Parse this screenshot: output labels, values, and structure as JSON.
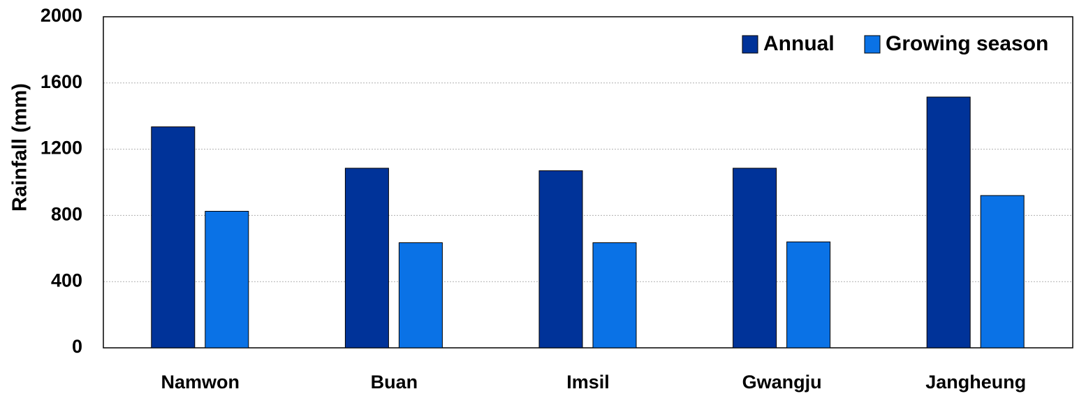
{
  "chart_data": {
    "type": "bar",
    "y_label": "Rainfall (mm)",
    "categories": [
      "Namwon",
      "Buan",
      "Imsil",
      "Gwangju",
      "Jangheung"
    ],
    "series": [
      {
        "name": "Annual",
        "color": "#003399",
        "values": [
          1335,
          1085,
          1070,
          1085,
          1515
        ]
      },
      {
        "name": "Growing season",
        "color": "#0a72e6",
        "values": [
          825,
          635,
          635,
          640,
          920
        ]
      }
    ],
    "ylim": [
      0,
      2000
    ],
    "yticks": [
      0,
      400,
      800,
      1200,
      1600,
      2000
    ],
    "grid": true,
    "legend": "upper right"
  }
}
